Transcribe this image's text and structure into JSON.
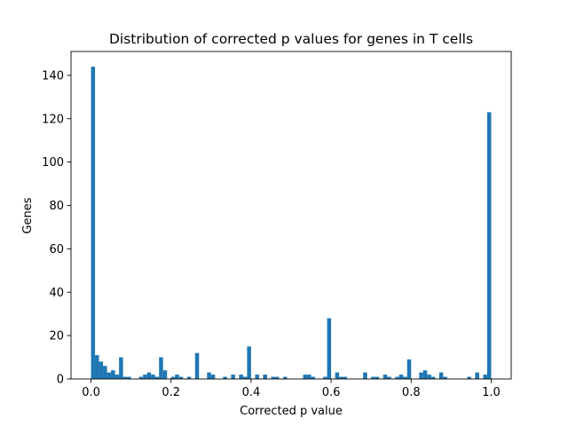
{
  "chart_data": {
    "type": "bar",
    "title": "Distribution of corrected p values for genes in T cells",
    "xlabel": "Corrected p value",
    "ylabel": "Genes",
    "xlim": [
      -0.05,
      1.05
    ],
    "ylim": [
      0,
      151
    ],
    "x_ticks": [
      0.0,
      0.2,
      0.4,
      0.6,
      0.8,
      1.0
    ],
    "x_tick_labels": [
      "0.0",
      "0.2",
      "0.4",
      "0.6",
      "0.8",
      "1.0"
    ],
    "y_ticks": [
      0,
      20,
      40,
      60,
      80,
      100,
      120,
      140
    ],
    "y_tick_labels": [
      "0",
      "20",
      "40",
      "60",
      "80",
      "100",
      "120",
      "140"
    ],
    "grid": false,
    "bar_color": "#1f77b4",
    "bin_width": 0.01,
    "bin_starts": [
      0.0,
      0.01,
      0.02,
      0.03,
      0.04,
      0.05,
      0.06,
      0.07,
      0.08,
      0.09,
      0.1,
      0.11,
      0.12,
      0.13,
      0.14,
      0.15,
      0.16,
      0.17,
      0.18,
      0.19,
      0.2,
      0.21,
      0.22,
      0.23,
      0.24,
      0.25,
      0.26,
      0.27,
      0.28,
      0.29,
      0.3,
      0.31,
      0.32,
      0.33,
      0.34,
      0.35,
      0.36,
      0.37,
      0.38,
      0.39,
      0.4,
      0.41,
      0.42,
      0.43,
      0.44,
      0.45,
      0.46,
      0.47,
      0.48,
      0.49,
      0.5,
      0.51,
      0.52,
      0.53,
      0.54,
      0.55,
      0.56,
      0.57,
      0.58,
      0.59,
      0.6,
      0.61,
      0.62,
      0.63,
      0.64,
      0.65,
      0.66,
      0.67,
      0.68,
      0.69,
      0.7,
      0.71,
      0.72,
      0.73,
      0.74,
      0.75,
      0.76,
      0.77,
      0.78,
      0.79,
      0.8,
      0.81,
      0.82,
      0.83,
      0.84,
      0.85,
      0.86,
      0.87,
      0.88,
      0.89,
      0.9,
      0.91,
      0.92,
      0.93,
      0.94,
      0.95,
      0.96,
      0.97,
      0.98,
      0.99
    ],
    "values": [
      144,
      11,
      8,
      6,
      3,
      4,
      2,
      10,
      1,
      1,
      0,
      0,
      1,
      2,
      3,
      2,
      1,
      10,
      4,
      0,
      1,
      2,
      1,
      0,
      1,
      0,
      12,
      0,
      0,
      3,
      2,
      0,
      0,
      1,
      0,
      2,
      0,
      2,
      1,
      15,
      0,
      2,
      0,
      2,
      0,
      1,
      1,
      0,
      1,
      0,
      0,
      0,
      0,
      2,
      2,
      1,
      0,
      0,
      1,
      28,
      0,
      3,
      1,
      1,
      0,
      0,
      0,
      0,
      3,
      0,
      1,
      1,
      0,
      2,
      1,
      0,
      1,
      2,
      1,
      9,
      0,
      0,
      3,
      4,
      2,
      1,
      0,
      3,
      1,
      0,
      0,
      0,
      0,
      0,
      1,
      0,
      3,
      0,
      2,
      123
    ]
  }
}
